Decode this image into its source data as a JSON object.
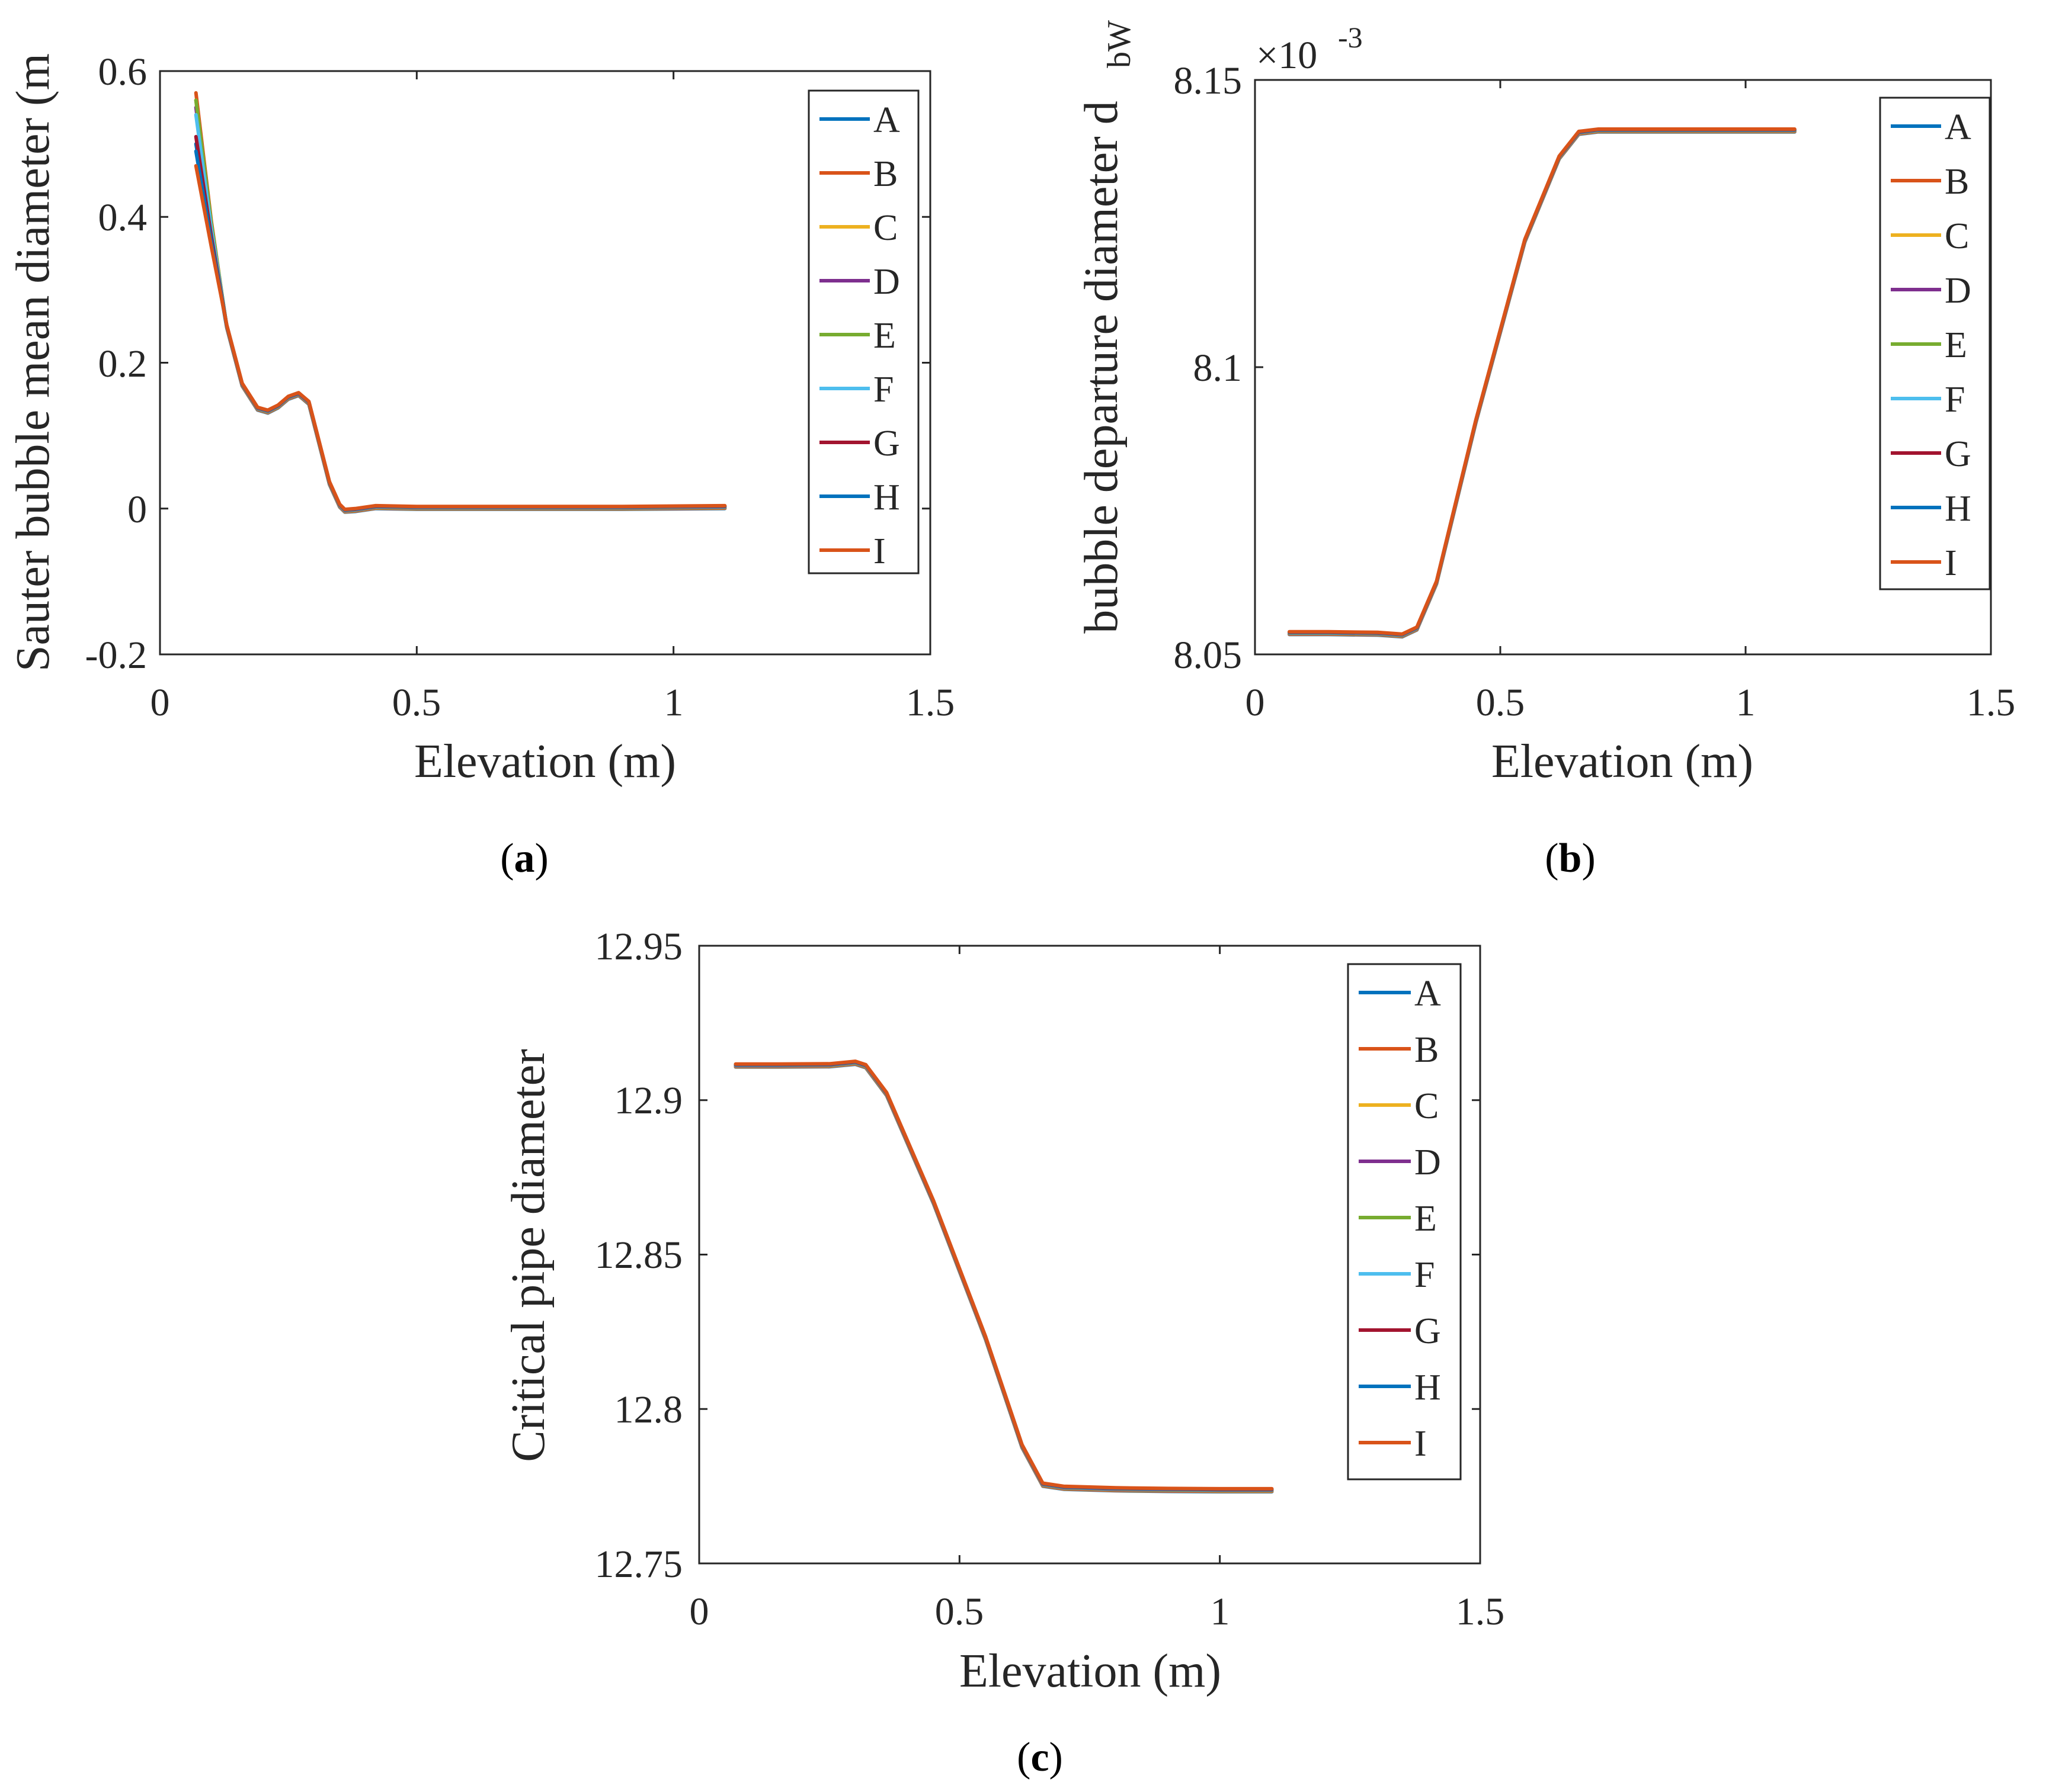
{
  "colors": {
    "A": "#0072BD",
    "B": "#D95319",
    "C": "#EDB120",
    "D": "#7E2F8E",
    "E": "#77AC30",
    "F": "#4DBEEE",
    "G": "#A2142F",
    "H": "#0072BD",
    "I": "#D95319"
  },
  "captions": [
    {
      "open": "(",
      "letter": "a",
      "close": ")"
    },
    {
      "open": "(",
      "letter": "b",
      "close": ")"
    },
    {
      "open": "(",
      "letter": "c",
      "close": ")"
    }
  ],
  "chart_data": [
    {
      "type": "line",
      "panel": "a",
      "xlabel": "Elevation (m)",
      "ylabel": "Sauter bubble mean diameter (m",
      "xlim": [
        0,
        1.5
      ],
      "ylim": [
        -0.2,
        0.6
      ],
      "xticks": [
        0,
        0.5,
        1,
        1.5
      ],
      "xticklabels": [
        "0",
        "0.5",
        "1",
        "1.5"
      ],
      "yticks": [
        -0.2,
        0,
        0.2,
        0.4,
        0.6
      ],
      "yticklabels": [
        "-0.2",
        "0",
        "0.2",
        "0.4",
        "0.6"
      ],
      "legend": [
        "A",
        "B",
        "C",
        "D",
        "E",
        "F",
        "G",
        "H",
        "I"
      ],
      "legend_position": "top-right",
      "start_values": {
        "A": 0.5,
        "B": 0.57,
        "C": 0.56,
        "D": 0.55,
        "E": 0.56,
        "F": 0.54,
        "G": 0.51,
        "H": 0.49,
        "I": 0.47
      },
      "base_curve": {
        "x": [
          0.07,
          0.1,
          0.13,
          0.16,
          0.19,
          0.21,
          0.23,
          0.25,
          0.27,
          0.29,
          0.31,
          0.33,
          0.35,
          0.36,
          0.38,
          0.42,
          0.5,
          0.7,
          0.9,
          1.1
        ],
        "y": [
          0.53,
          0.38,
          0.25,
          0.17,
          0.137,
          0.133,
          0.14,
          0.152,
          0.157,
          0.145,
          0.09,
          0.035,
          0.004,
          -0.003,
          -0.002,
          0.002,
          0.001,
          0.001,
          0.001,
          0.002
        ]
      }
    },
    {
      "type": "line",
      "panel": "b",
      "xlabel": "Elevation (m)",
      "ylabel_main": "bubble departure diameter d",
      "ylabel_sub": "bW",
      "exponent_base": "×10",
      "exponent_power": "-3",
      "xlim": [
        0,
        1.5
      ],
      "ylim": [
        8.05,
        8.15
      ],
      "xticks": [
        0,
        0.5,
        1,
        1.5
      ],
      "xticklabels": [
        "0",
        "0.5",
        "1",
        "1.5"
      ],
      "yticks": [
        8.05,
        8.1,
        8.15
      ],
      "yticklabels": [
        "8.05",
        "8.1",
        "8.15"
      ],
      "legend": [
        "A",
        "B",
        "C",
        "D",
        "E",
        "F",
        "G",
        "H",
        "I"
      ],
      "legend_position": "top-right",
      "base_curve": {
        "x": [
          0.07,
          0.15,
          0.25,
          0.3,
          0.33,
          0.37,
          0.45,
          0.55,
          0.62,
          0.66,
          0.7,
          0.8,
          0.9,
          1.0,
          1.1
        ],
        "y": [
          8.0537,
          8.0537,
          8.0536,
          8.0533,
          8.0545,
          8.0625,
          8.0905,
          8.122,
          8.1365,
          8.1408,
          8.1412,
          8.1412,
          8.1412,
          8.1412,
          8.1412
        ]
      }
    },
    {
      "type": "line",
      "panel": "c",
      "xlabel": "Elevation (m)",
      "ylabel": "Critical pipe diameter",
      "xlim": [
        0,
        1.5
      ],
      "ylim": [
        12.75,
        12.95
      ],
      "xticks": [
        0,
        0.5,
        1,
        1.5
      ],
      "xticklabels": [
        "0",
        "0.5",
        "1",
        "1.5"
      ],
      "yticks": [
        12.75,
        12.8,
        12.85,
        12.9,
        12.95
      ],
      "yticklabels": [
        "12.75",
        "12.8",
        "12.85",
        "12.9",
        "12.95"
      ],
      "legend": [
        "A",
        "B",
        "C",
        "D",
        "E",
        "F",
        "G",
        "H",
        "I"
      ],
      "legend_position": "top-right",
      "base_curve": {
        "x": [
          0.07,
          0.15,
          0.25,
          0.3,
          0.32,
          0.36,
          0.45,
          0.55,
          0.62,
          0.66,
          0.7,
          0.8,
          0.9,
          1.0,
          1.1
        ],
        "y": [
          12.9112,
          12.9112,
          12.9113,
          12.9121,
          12.911,
          12.902,
          12.867,
          12.823,
          12.788,
          12.7755,
          12.7745,
          12.774,
          12.7738,
          12.7737,
          12.7737
        ]
      }
    }
  ]
}
